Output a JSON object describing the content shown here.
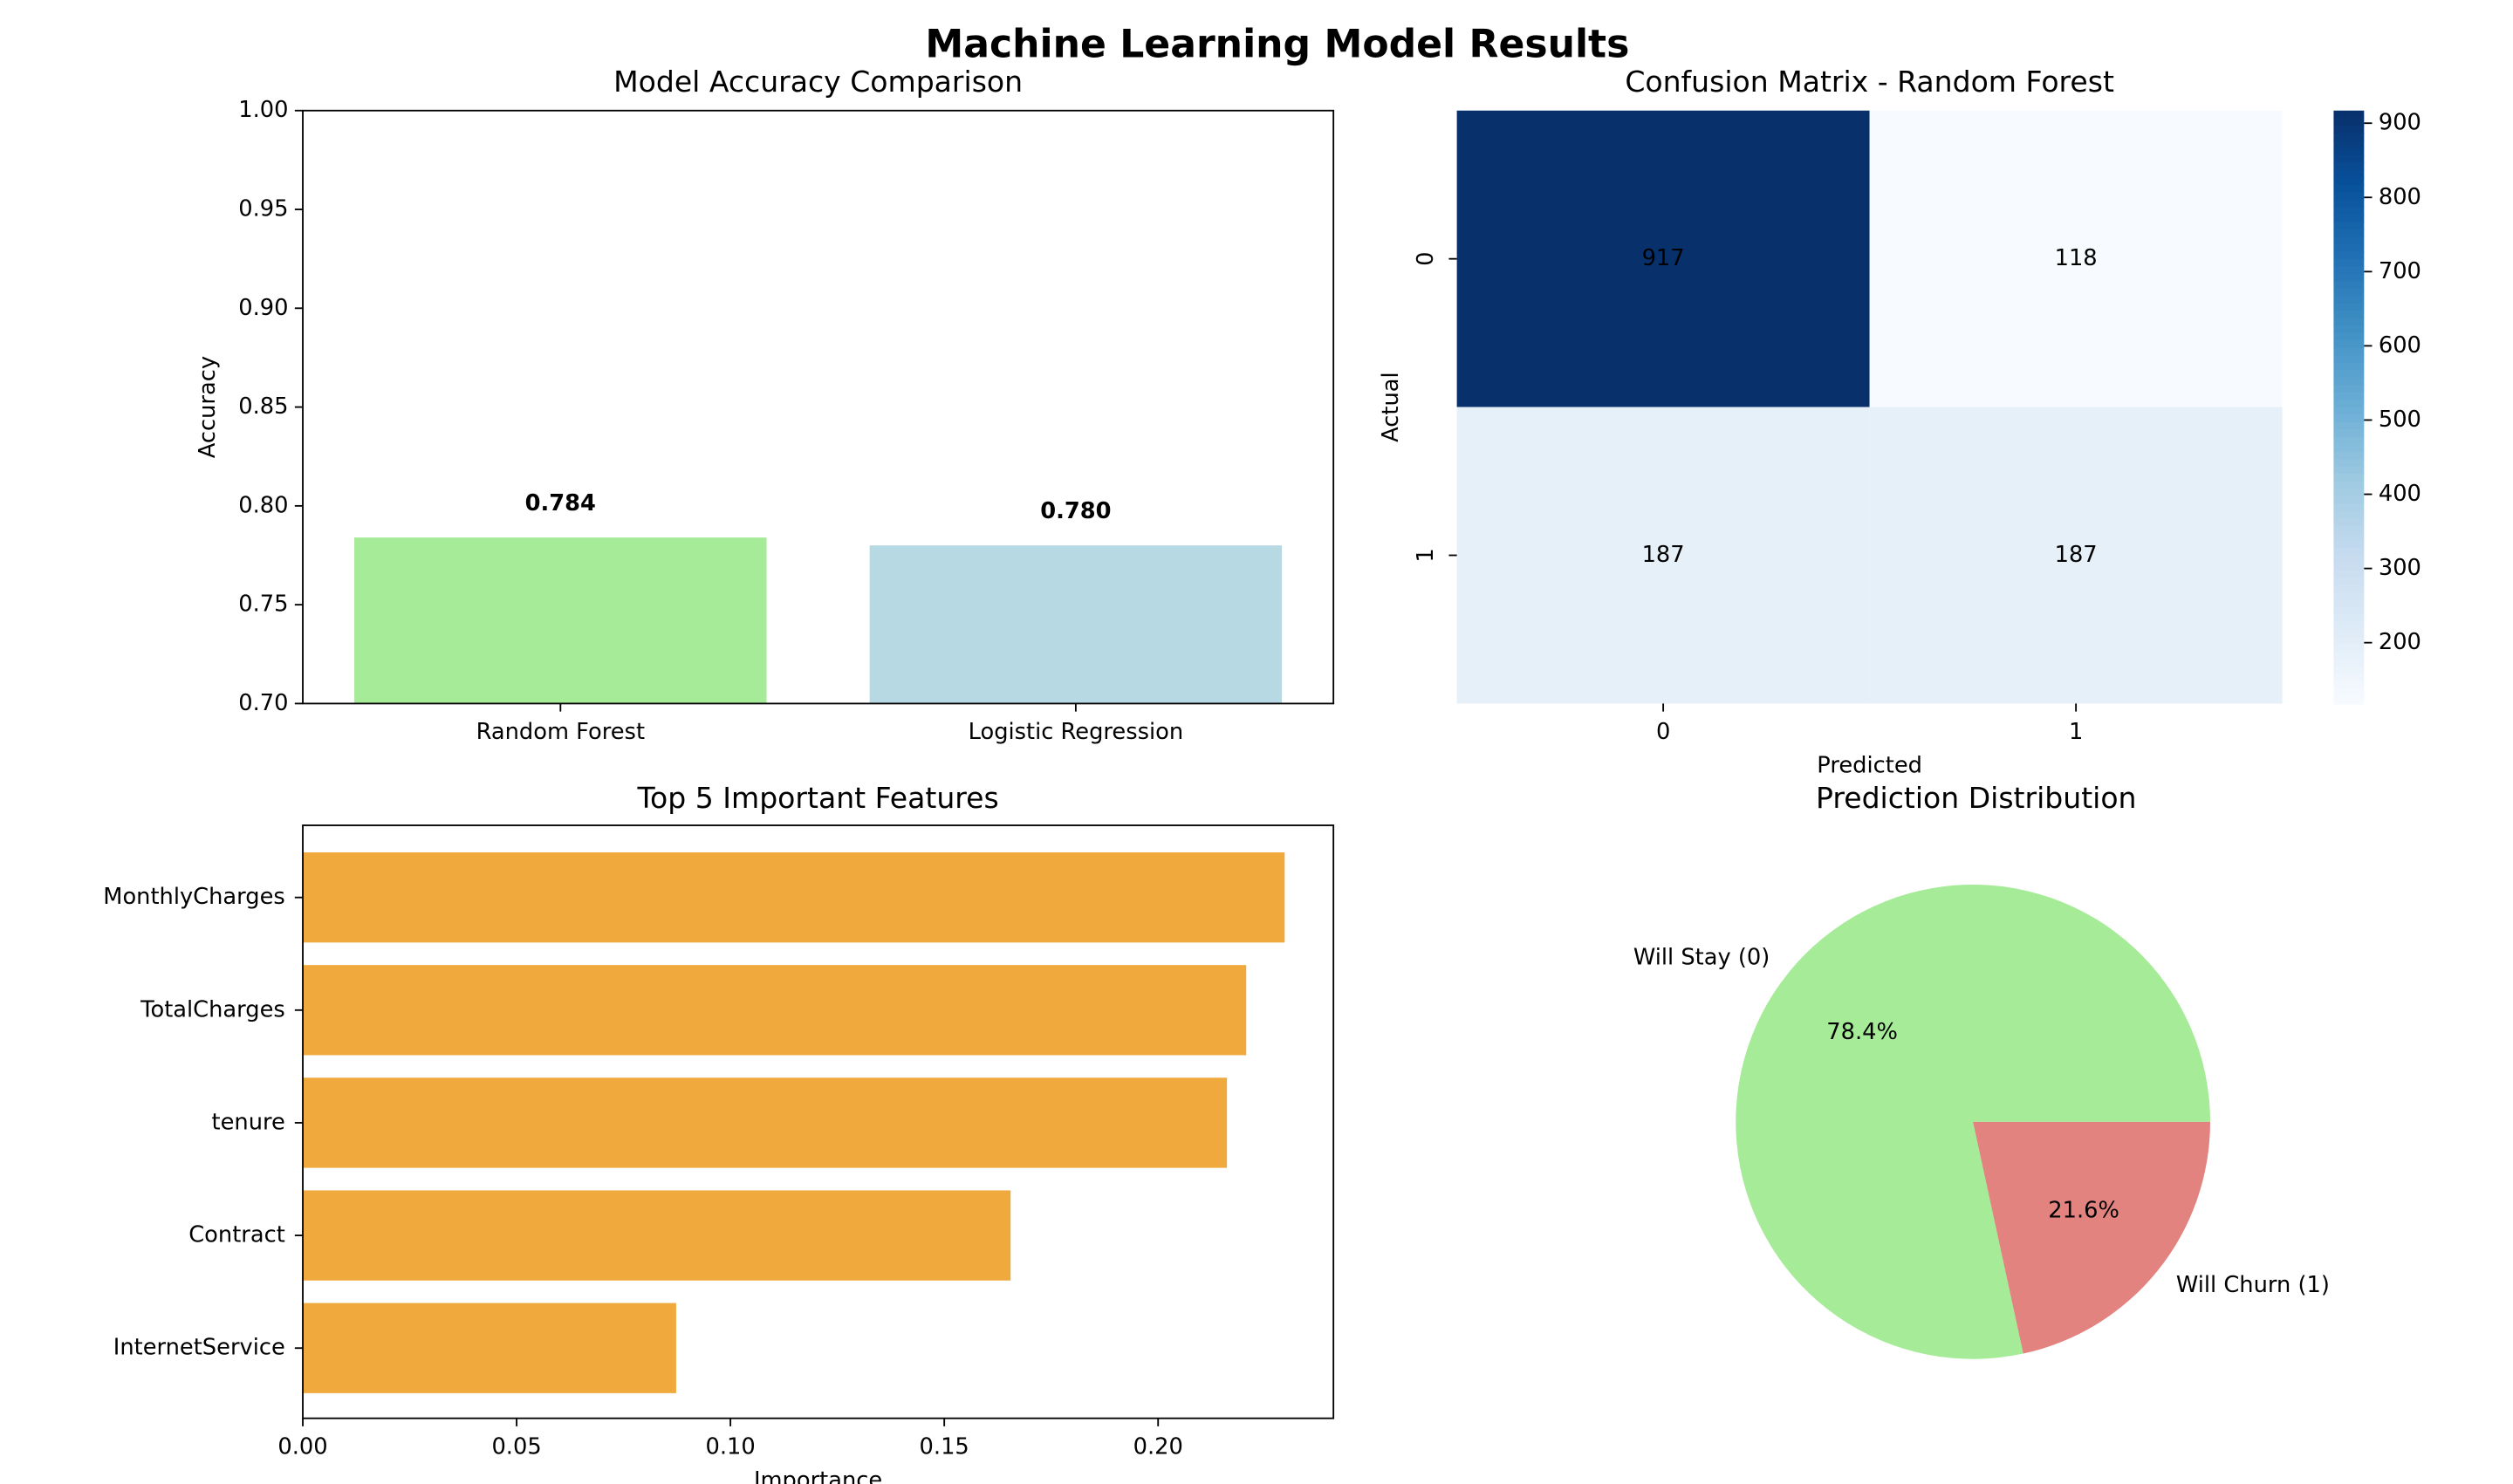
{
  "title": "Machine Learning Model Results",
  "chart_data": [
    {
      "type": "bar",
      "title": "Model Accuracy Comparison",
      "ylabel": "Accuracy",
      "categories": [
        "Random Forest",
        "Logistic Regression"
      ],
      "values": [
        0.784,
        0.78
      ],
      "value_labels": [
        "0.784",
        "0.780"
      ],
      "colors": [
        "#a6eb98",
        "#b7d9e4"
      ],
      "ylim": [
        0.7,
        1.0
      ],
      "yticks": [
        {
          "value": 0.7,
          "label": "0.70"
        },
        0.75,
        {
          "value": 0.8,
          "label": "0.80"
        },
        0.85,
        {
          "value": 0.9,
          "label": "0.90"
        },
        0.95,
        {
          "value": 1.0,
          "label": "1.00"
        }
      ]
    },
    {
      "type": "heatmap",
      "title": "Confusion Matrix - Random Forest",
      "xlabel": "Predicted",
      "ylabel": "Actual",
      "x_categories": [
        "0",
        "1"
      ],
      "y_categories": [
        "0",
        "1"
      ],
      "values": [
        [
          917,
          118
        ],
        [
          187,
          187
        ]
      ],
      "colormap": "Blues",
      "clim": [
        118,
        917
      ],
      "colorbar_ticks": [
        200,
        300,
        400,
        500,
        600,
        700,
        800,
        900
      ]
    },
    {
      "type": "barh",
      "title": "Top 5 Important Features",
      "xlabel": "Importance",
      "categories": [
        "MonthlyCharges",
        "TotalCharges",
        "tenure",
        "Contract",
        "InternetService"
      ],
      "values": [
        0.2296,
        0.2206,
        0.2161,
        0.1655,
        0.0873
      ],
      "color": "#f0a93c",
      "xlim": [
        0,
        0.241
      ],
      "xticks": [
        {
          "value": 0,
          "label": "0.00"
        },
        0.05,
        {
          "value": 0.1,
          "label": "0.10"
        },
        0.15,
        {
          "value": 0.2,
          "label": "0.20"
        }
      ]
    },
    {
      "type": "pie",
      "title": "Prediction Distribution",
      "labels": [
        "Will Stay (0)",
        "Will Churn (1)"
      ],
      "values": [
        78.4,
        21.6
      ],
      "value_labels": [
        "78.4%",
        "21.6%"
      ],
      "colors": [
        "#a6eb98",
        "#e2837f"
      ]
    }
  ]
}
